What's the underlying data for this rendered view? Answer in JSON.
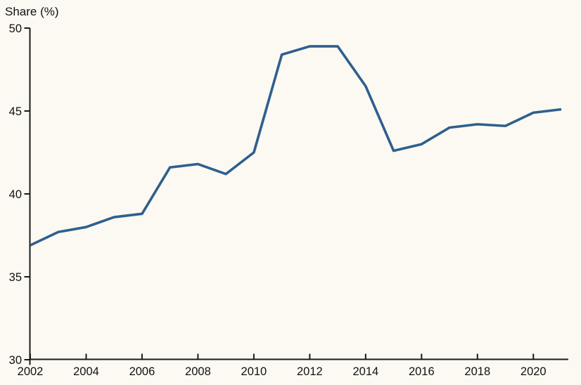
{
  "chart_data": {
    "type": "line",
    "title": "Share (%)",
    "x": [
      2002,
      2003,
      2004,
      2005,
      2006,
      2007,
      2008,
      2009,
      2010,
      2011,
      2012,
      2013,
      2014,
      2015,
      2016,
      2017,
      2018,
      2019,
      2020,
      2021
    ],
    "values": [
      36.9,
      37.7,
      38.0,
      38.6,
      38.8,
      41.6,
      41.8,
      41.2,
      42.5,
      48.4,
      48.9,
      48.9,
      46.5,
      42.6,
      43.0,
      44.0,
      44.2,
      44.1,
      44.9,
      45.1
    ],
    "series_name": "Share",
    "xlabel": "",
    "ylabel": "Share (%)",
    "xlim": [
      2002,
      2021
    ],
    "ylim": [
      30,
      50
    ],
    "xticks": [
      2002,
      2004,
      2006,
      2008,
      2010,
      2012,
      2014,
      2016,
      2018,
      2020
    ],
    "yticks": [
      30,
      35,
      40,
      45,
      50
    ],
    "grid": false,
    "legend": false,
    "line_color": "#2f5f8e",
    "background_color": "#fbf9f2",
    "axis_color": "#1a1a1a",
    "text_color": "#111111"
  }
}
